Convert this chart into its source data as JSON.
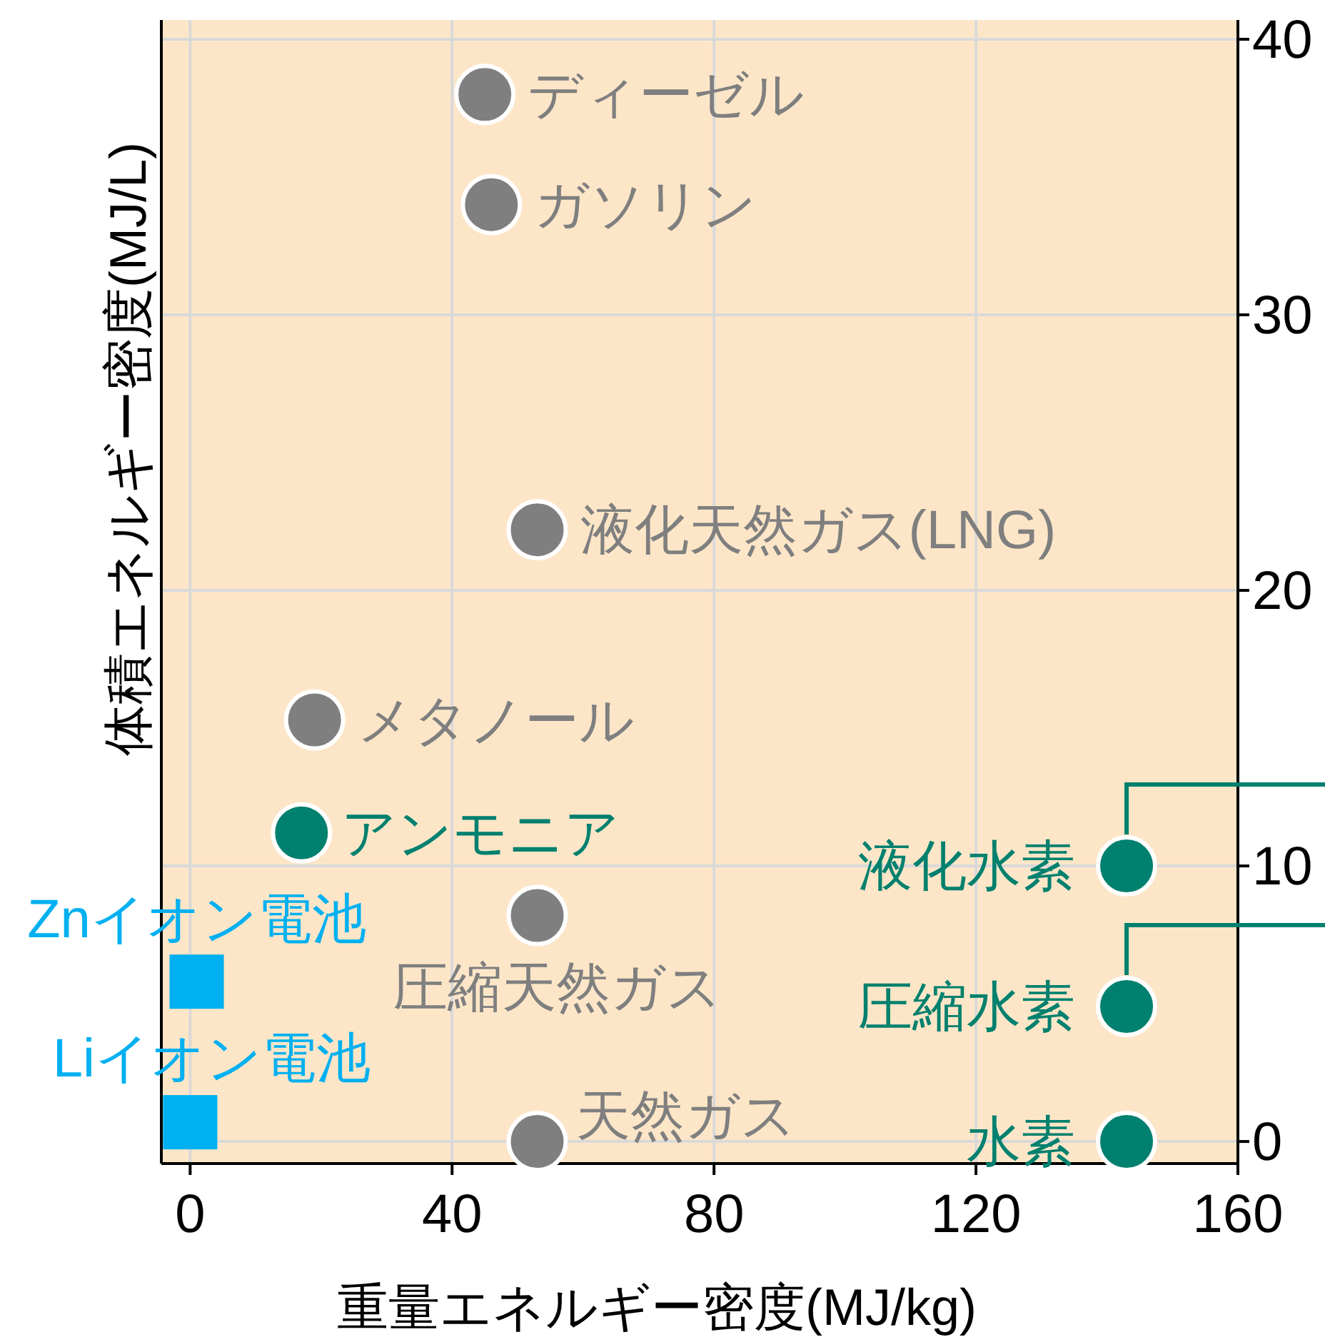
{
  "chart_data": {
    "type": "scatter",
    "xlabel": "重量エネルギー密度(MJ/kg)",
    "ylabel": "体積エネルギー密度(MJ/L)",
    "xlim": [
      -4.4,
      160
    ],
    "ylim": [
      -0.8,
      40.7
    ],
    "xticks": [
      0,
      40,
      80,
      120,
      160
    ],
    "yticks": [
      0,
      10,
      20,
      30,
      40
    ],
    "grid": true,
    "series": [
      {
        "color": "#7f7f7f",
        "marker": "circle",
        "x": [
          45,
          46,
          53,
          19,
          53,
          53
        ],
        "values": [
          38,
          34,
          22.2,
          15.3,
          8.2,
          0
        ]
      },
      {
        "color": "#00806e",
        "marker": "circle",
        "x": [
          17,
          143,
          143,
          143
        ],
        "values": [
          11.2,
          10,
          4.9,
          0
        ]
      },
      {
        "color": "#00b0f0",
        "marker": "square",
        "x": [
          1,
          0
        ],
        "values": [
          5.8,
          0.7
        ]
      }
    ],
    "annotations": [
      {
        "text": "ディーゼル",
        "x": 45,
        "y": 38
      },
      {
        "text": "ガソリン",
        "x": 46,
        "y": 34
      },
      {
        "text": "液化天然ガス(LNG)",
        "x": 53,
        "y": 22.2
      },
      {
        "text": "メタノール",
        "x": 19,
        "y": 15.3
      },
      {
        "text": "アンモニア",
        "x": 17,
        "y": 11.2
      },
      {
        "text": "圧縮天然ガス",
        "x": 53,
        "y": 8.2
      },
      {
        "text": "天然ガス",
        "x": 53,
        "y": 0
      },
      {
        "text": "液化水素",
        "x": 143,
        "y": 10
      },
      {
        "text": "圧縮水素",
        "x": 143,
        "y": 4.9
      },
      {
        "text": "水素",
        "x": 143,
        "y": 0
      },
      {
        "text": "Znイオン電池",
        "x": 1,
        "y": 5.8
      },
      {
        "text": "Liイオン電池",
        "x": 0,
        "y": 0.7
      }
    ]
  }
}
